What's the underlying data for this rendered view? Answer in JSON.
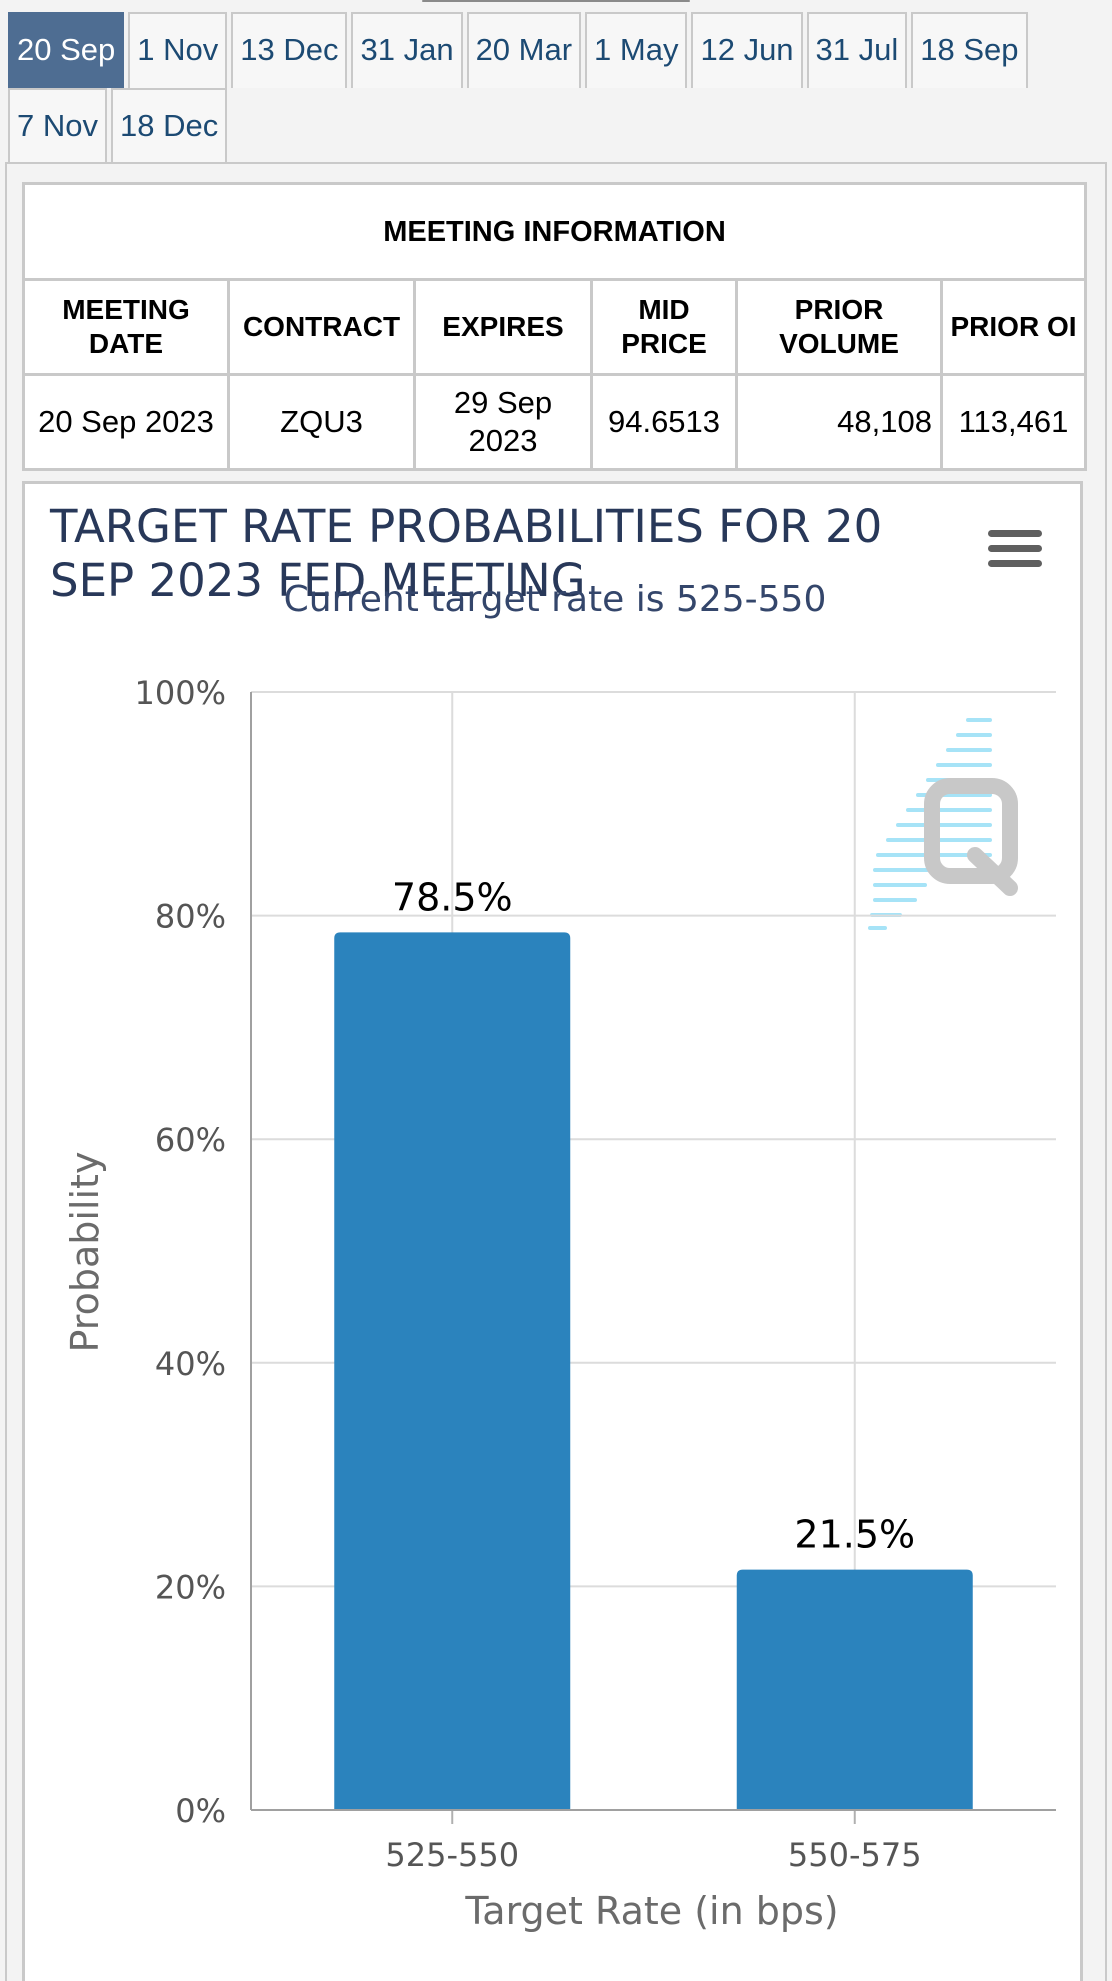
{
  "tabs": [
    {
      "label": "20 Sep",
      "active": true
    },
    {
      "label": "1 Nov",
      "active": false
    },
    {
      "label": "13 Dec",
      "active": false
    },
    {
      "label": "31 Jan",
      "active": false
    },
    {
      "label": "20 Mar",
      "active": false
    },
    {
      "label": "1 May",
      "active": false
    },
    {
      "label": "12 Jun",
      "active": false
    },
    {
      "label": "31 Jul",
      "active": false
    },
    {
      "label": "18 Sep",
      "active": false
    },
    {
      "label": "7 Nov",
      "active": false
    },
    {
      "label": "18 Dec",
      "active": false
    }
  ],
  "meeting_info": {
    "caption": "MEETING INFORMATION",
    "headers": {
      "meeting_date": "MEETING DATE",
      "contract": "CONTRACT",
      "expires": "EXPIRES",
      "mid_price": "MID PRICE",
      "prior_volume": "PRIOR VOLUME",
      "prior_oi": "PRIOR OI"
    },
    "row": {
      "meeting_date": "20 Sep 2023",
      "contract": "ZQU3",
      "expires": "29 Sep 2023",
      "mid_price": "94.6513",
      "prior_volume": "48,108",
      "prior_oi": "113,461"
    }
  },
  "chart_data": {
    "type": "bar",
    "title": "TARGET RATE PROBABILITIES FOR 20 SEP 2023 FED MEETING",
    "subtitle": "Current target rate is 525-550",
    "categories": [
      "525-550",
      "550-575"
    ],
    "values": [
      78.5,
      21.5
    ],
    "data_labels": [
      "78.5%",
      "21.5%"
    ],
    "xlabel": "Target Rate (in bps)",
    "ylabel": "Probability",
    "ylim": [
      0,
      100
    ],
    "yticks": [
      0,
      20,
      40,
      60,
      80,
      100
    ],
    "ytick_labels": [
      "0%",
      "20%",
      "40%",
      "60%",
      "80%",
      "100%"
    ],
    "grid": true,
    "legend": false,
    "bar_color": "#2b83bd"
  },
  "colors": {
    "active_tab": "#4e6d92",
    "tab_text": "#1c4a73",
    "title_text": "#283859",
    "bar": "#2b83bd"
  },
  "icons": {
    "menu": "hamburger-menu-icon",
    "watermark": "quikstrike-q-logo"
  }
}
